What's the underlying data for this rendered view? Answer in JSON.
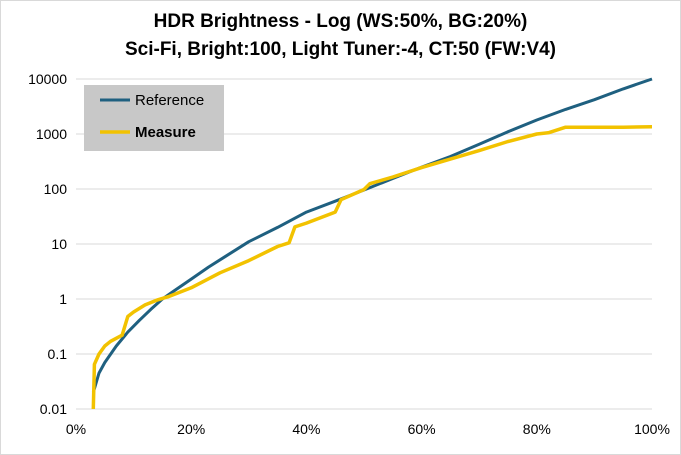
{
  "chart_data": {
    "type": "line",
    "title": "HDR Brightness - Log (WS:50%, BG:20%)",
    "subtitle": "Sci-Fi, Bright:100, Light Tuner:-4, CT:50 (FW:V4)",
    "xlabel": "",
    "ylabel": "",
    "x_scale": "linear",
    "y_scale": "log",
    "xlim": [
      0,
      100
    ],
    "ylim": [
      0.01,
      10000
    ],
    "x_ticks": [
      "0%",
      "20%",
      "40%",
      "60%",
      "80%",
      "100%"
    ],
    "y_ticks": [
      "0.01",
      "0.1",
      "1",
      "10",
      "100",
      "1000",
      "10000"
    ],
    "grid": "horizontal",
    "legend_position": "top-left",
    "series": [
      {
        "name": "Reference",
        "color": "#1f6080",
        "x": [
          3,
          4,
          5,
          7,
          9,
          11,
          13,
          15,
          17,
          20,
          23,
          26,
          30,
          35,
          40,
          45,
          50,
          55,
          60,
          65,
          70,
          75,
          80,
          85,
          90,
          95,
          100
        ],
        "y": [
          0.02,
          0.045,
          0.07,
          0.14,
          0.25,
          0.41,
          0.65,
          1.0,
          1.4,
          2.3,
          3.8,
          6.0,
          11,
          20,
          38,
          60,
          96,
          155,
          250,
          390,
          650,
          1100,
          1800,
          2800,
          4200,
          6600,
          10000
        ]
      },
      {
        "name": "Measure",
        "color": "#f2c200",
        "x": [
          3,
          3.2,
          4,
          5,
          6,
          8,
          9,
          10,
          12,
          14,
          16,
          20,
          25,
          30,
          35,
          37,
          38,
          40,
          45,
          46,
          50,
          51,
          55,
          60,
          65,
          70,
          75,
          80,
          82,
          85,
          90,
          95,
          100
        ],
        "y": [
          0.01,
          0.065,
          0.1,
          0.14,
          0.17,
          0.22,
          0.48,
          0.58,
          0.78,
          0.95,
          1.1,
          1.6,
          3.0,
          5.0,
          9.0,
          10.5,
          20.5,
          24,
          38,
          64,
          98,
          125,
          165,
          245,
          350,
          500,
          730,
          1000,
          1050,
          1330,
          1330,
          1330,
          1350
        ]
      }
    ]
  }
}
